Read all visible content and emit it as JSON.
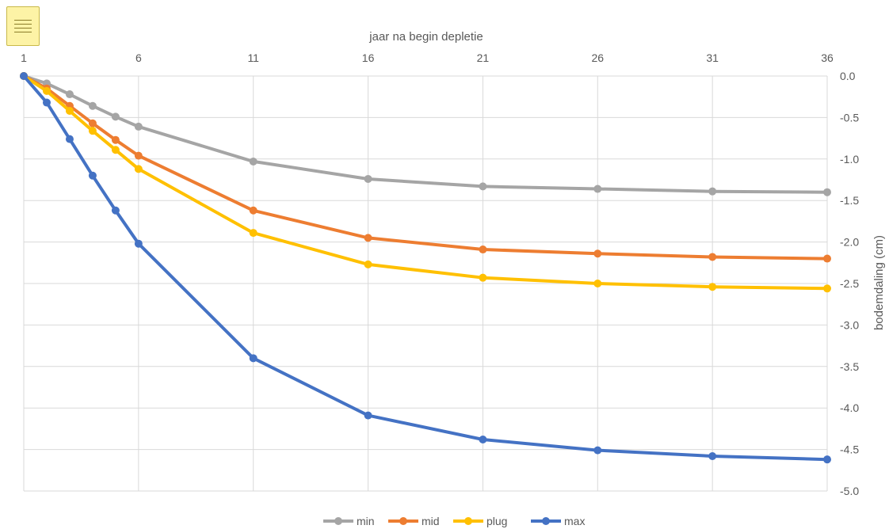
{
  "chart_data": {
    "type": "line",
    "xlabel": "jaar na begin depletie",
    "ylabel": "bodemdaling (cm)",
    "x_axis_position": "top",
    "y_axis_position": "right",
    "xlim": [
      1,
      36
    ],
    "ylim": [
      -5.0,
      0.0
    ],
    "x_ticks": [
      1,
      6,
      11,
      16,
      21,
      26,
      31,
      36
    ],
    "y_ticks": [
      0.0,
      -0.5,
      -1.0,
      -1.5,
      -2.0,
      -2.5,
      -3.0,
      -3.5,
      -4.0,
      -4.5,
      -5.0
    ],
    "grid": true,
    "legend_position": "bottom",
    "series": [
      {
        "name": "min",
        "color": "#a5a5a5",
        "x": [
          1,
          2,
          3,
          4,
          5,
          6,
          11,
          16,
          21,
          26,
          31,
          36
        ],
        "y": [
          0.0,
          -0.09,
          -0.22,
          -0.36,
          -0.49,
          -0.61,
          -1.03,
          -1.24,
          -1.33,
          -1.36,
          -1.39,
          -1.4
        ]
      },
      {
        "name": "mid",
        "color": "#ed7d31",
        "x": [
          1,
          2,
          3,
          4,
          5,
          6,
          11,
          16,
          21,
          26,
          31,
          36
        ],
        "y": [
          0.0,
          -0.15,
          -0.36,
          -0.57,
          -0.77,
          -0.96,
          -1.62,
          -1.95,
          -2.09,
          -2.14,
          -2.18,
          -2.2
        ]
      },
      {
        "name": "plug",
        "color": "#ffc000",
        "x": [
          1,
          2,
          3,
          4,
          5,
          6,
          11,
          16,
          21,
          26,
          31,
          36
        ],
        "y": [
          0.0,
          -0.18,
          -0.42,
          -0.66,
          -0.89,
          -1.12,
          -1.89,
          -2.27,
          -2.43,
          -2.5,
          -2.54,
          -2.56
        ]
      },
      {
        "name": "max",
        "color": "#4472c4",
        "x": [
          1,
          2,
          3,
          4,
          5,
          6,
          11,
          16,
          21,
          26,
          31,
          36
        ],
        "y": [
          0.0,
          -0.32,
          -0.76,
          -1.2,
          -1.62,
          -2.02,
          -3.4,
          -4.09,
          -4.38,
          -4.51,
          -4.58,
          -4.62
        ]
      }
    ]
  },
  "ui": {
    "menu_icon": "hamburger-menu-icon",
    "menu_color": "#fdf3a6",
    "grid_color": "#d9d9d9"
  }
}
